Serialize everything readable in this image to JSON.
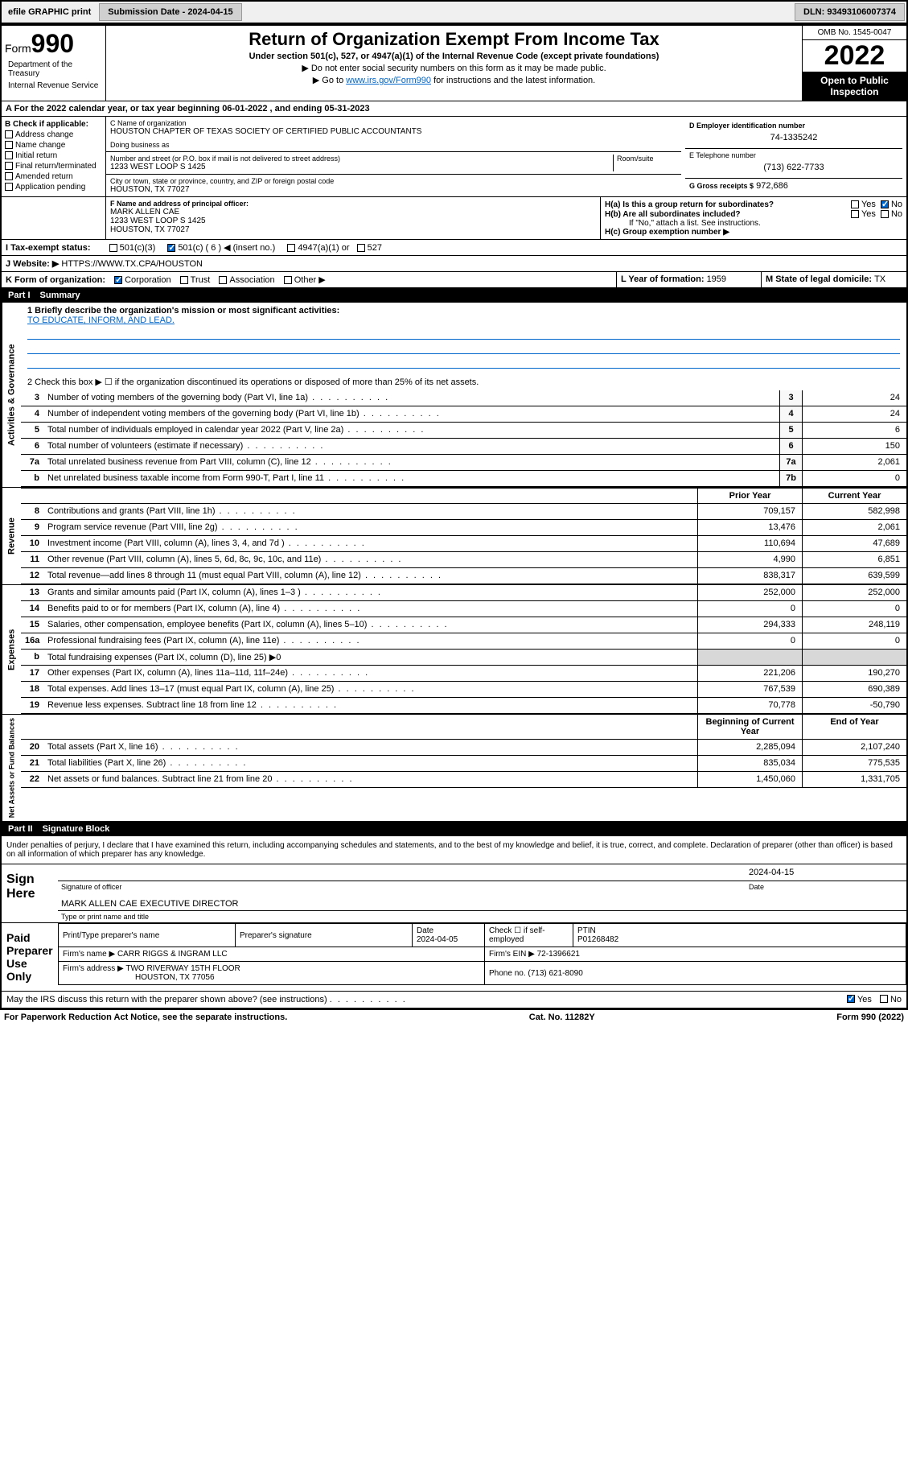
{
  "topbar": {
    "efile": "efile GRAPHIC print",
    "sub_label": "Submission Date - 2024-04-15",
    "dln_label": "DLN: 93493106007374"
  },
  "header": {
    "form_word": "Form",
    "form_num": "990",
    "title": "Return of Organization Exempt From Income Tax",
    "subtitle": "Under section 501(c), 527, or 4947(a)(1) of the Internal Revenue Code (except private foundations)",
    "note1": "▶ Do not enter social security numbers on this form as it may be made public.",
    "note2_pre": "▶ Go to ",
    "note2_link": "www.irs.gov/Form990",
    "note2_post": " for instructions and the latest information.",
    "omb": "OMB No. 1545-0047",
    "year": "2022",
    "open": "Open to Public Inspection",
    "dept": "Department of the Treasury",
    "irs": "Internal Revenue Service"
  },
  "section_a": {
    "line": "A For the 2022 calendar year, or tax year beginning 06-01-2022    , and ending 05-31-2023"
  },
  "block_b": {
    "title": "B Check if applicable:",
    "items": [
      "Address change",
      "Name change",
      "Initial return",
      "Final return/terminated",
      "Amended return",
      "Application pending"
    ]
  },
  "block_c": {
    "label": "C Name of organization",
    "name": "HOUSTON CHAPTER OF TEXAS SOCIETY OF CERTIFIED PUBLIC ACCOUNTANTS",
    "dba_label": "Doing business as",
    "addr_label": "Number and street (or P.O. box if mail is not delivered to street address)",
    "room_label": "Room/suite",
    "addr": "1233 WEST LOOP S 1425",
    "city_label": "City or town, state or province, country, and ZIP or foreign postal code",
    "city": "HOUSTON, TX  77027"
  },
  "block_d": {
    "label": "D Employer identification number",
    "value": "74-1335242"
  },
  "block_e": {
    "label": "E Telephone number",
    "value": "(713) 622-7733"
  },
  "block_g": {
    "label": "G Gross receipts $",
    "value": "972,686"
  },
  "block_f": {
    "label": "F Name and address of principal officer:",
    "name": "MARK ALLEN CAE",
    "addr1": "1233 WEST LOOP S 1425",
    "addr2": "HOUSTON, TX  77027"
  },
  "block_h": {
    "a_label": "H(a)  Is this a group return for subordinates?",
    "b_label": "H(b)  Are all subordinates included?",
    "note": "If \"No,\" attach a list. See instructions.",
    "c_label": "H(c)  Group exemption number ▶",
    "yes": "Yes",
    "no": "No"
  },
  "block_i": {
    "label": "I     Tax-exempt status:",
    "opt1": "501(c)(3)",
    "opt2": "501(c) ( 6 ) ◀ (insert no.)",
    "opt3": "4947(a)(1) or",
    "opt4": "527"
  },
  "block_j": {
    "label": "J     Website: ▶",
    "value": " HTTPS://WWW.TX.CPA/HOUSTON"
  },
  "block_k": {
    "label": "K Form of organization:",
    "opts": [
      "Corporation",
      "Trust",
      "Association",
      "Other ▶"
    ]
  },
  "block_l": {
    "label": "L Year of formation: ",
    "value": "1959"
  },
  "block_m": {
    "label": "M State of legal domicile: ",
    "value": "TX"
  },
  "part1": {
    "label": "Part I",
    "title": "Summary",
    "q1_label": "1  Briefly describe the organization's mission or most significant activities:",
    "q1_text": "TO EDUCATE, INFORM, AND LEAD.",
    "q2": "2    Check this box ▶ ☐  if the organization discontinued its operations or disposed of more than 25% of its net assets.",
    "vert_ag": "Activities & Governance",
    "vert_rev": "Revenue",
    "vert_exp": "Expenses",
    "vert_net": "Net Assets or Fund Balances",
    "prior": "Prior Year",
    "current": "Current Year",
    "begin": "Beginning of Current Year",
    "end": "End of Year",
    "lines_ag": [
      {
        "n": "3",
        "d": "Number of voting members of the governing body (Part VI, line 1a)",
        "box": "3",
        "v": "24"
      },
      {
        "n": "4",
        "d": "Number of independent voting members of the governing body (Part VI, line 1b)",
        "box": "4",
        "v": "24"
      },
      {
        "n": "5",
        "d": "Total number of individuals employed in calendar year 2022 (Part V, line 2a)",
        "box": "5",
        "v": "6"
      },
      {
        "n": "6",
        "d": "Total number of volunteers (estimate if necessary)",
        "box": "6",
        "v": "150"
      },
      {
        "n": "7a",
        "d": "Total unrelated business revenue from Part VIII, column (C), line 12",
        "box": "7a",
        "v": "2,061"
      },
      {
        "n": "b",
        "d": "Net unrelated business taxable income from Form 990-T, Part I, line 11",
        "box": "7b",
        "v": "0"
      }
    ],
    "lines_rev": [
      {
        "n": "8",
        "d": "Contributions and grants (Part VIII, line 1h)",
        "p": "709,157",
        "c": "582,998"
      },
      {
        "n": "9",
        "d": "Program service revenue (Part VIII, line 2g)",
        "p": "13,476",
        "c": "2,061"
      },
      {
        "n": "10",
        "d": "Investment income (Part VIII, column (A), lines 3, 4, and 7d )",
        "p": "110,694",
        "c": "47,689"
      },
      {
        "n": "11",
        "d": "Other revenue (Part VIII, column (A), lines 5, 6d, 8c, 9c, 10c, and 11e)",
        "p": "4,990",
        "c": "6,851"
      },
      {
        "n": "12",
        "d": "Total revenue—add lines 8 through 11 (must equal Part VIII, column (A), line 12)",
        "p": "838,317",
        "c": "639,599"
      }
    ],
    "lines_exp": [
      {
        "n": "13",
        "d": "Grants and similar amounts paid (Part IX, column (A), lines 1–3 )",
        "p": "252,000",
        "c": "252,000"
      },
      {
        "n": "14",
        "d": "Benefits paid to or for members (Part IX, column (A), line 4)",
        "p": "0",
        "c": "0"
      },
      {
        "n": "15",
        "d": "Salaries, other compensation, employee benefits (Part IX, column (A), lines 5–10)",
        "p": "294,333",
        "c": "248,119"
      },
      {
        "n": "16a",
        "d": "Professional fundraising fees (Part IX, column (A), line 11e)",
        "p": "0",
        "c": "0"
      },
      {
        "n": "b",
        "d": "Total fundraising expenses (Part IX, column (D), line 25) ▶0",
        "p": "",
        "c": "",
        "grey": true
      },
      {
        "n": "17",
        "d": "Other expenses (Part IX, column (A), lines 11a–11d, 11f–24e)",
        "p": "221,206",
        "c": "190,270"
      },
      {
        "n": "18",
        "d": "Total expenses. Add lines 13–17 (must equal Part IX, column (A), line 25)",
        "p": "767,539",
        "c": "690,389"
      },
      {
        "n": "19",
        "d": "Revenue less expenses. Subtract line 18 from line 12",
        "p": "70,778",
        "c": "-50,790"
      }
    ],
    "lines_net": [
      {
        "n": "20",
        "d": "Total assets (Part X, line 16)",
        "p": "2,285,094",
        "c": "2,107,240"
      },
      {
        "n": "21",
        "d": "Total liabilities (Part X, line 26)",
        "p": "835,034",
        "c": "775,535"
      },
      {
        "n": "22",
        "d": "Net assets or fund balances. Subtract line 21 from line 20",
        "p": "1,450,060",
        "c": "1,331,705"
      }
    ]
  },
  "part2": {
    "label": "Part II",
    "title": "Signature Block",
    "declaration": "Under penalties of perjury, I declare that I have examined this return, including accompanying schedules and statements, and to the best of my knowledge and belief, it is true, correct, and complete. Declaration of preparer (other than officer) is based on all information of which preparer has any knowledge.",
    "sign_here": "Sign Here",
    "sig_officer": "Signature of officer",
    "sig_date": "2024-04-15",
    "date_label": "Date",
    "officer_name": "MARK ALLEN CAE  EXECUTIVE DIRECTOR",
    "type_label": "Type or print name and title",
    "paid": "Paid Preparer Use Only",
    "prep_name_label": "Print/Type preparer's name",
    "prep_sig_label": "Preparer's signature",
    "prep_date_label": "Date",
    "prep_date": "2024-04-05",
    "check_label": "Check ☐ if self-employed",
    "ptin_label": "PTIN",
    "ptin": "P01268482",
    "firm_name_label": "Firm's name    ▶",
    "firm_name": "CARR RIGGS & INGRAM LLC",
    "firm_ein_label": "Firm's EIN ▶",
    "firm_ein": "72-1396621",
    "firm_addr_label": "Firm's address ▶",
    "firm_addr1": "TWO RIVERWAY 15TH FLOOR",
    "firm_addr2": "HOUSTON, TX  77056",
    "phone_label": "Phone no. ",
    "phone": "(713) 621-8090",
    "discuss": "May the IRS discuss this return with the preparer shown above? (see instructions)",
    "yes": "Yes",
    "no": "No"
  },
  "footer": {
    "left": "For Paperwork Reduction Act Notice, see the separate instructions.",
    "mid": "Cat. No. 11282Y",
    "right": "Form 990 (2022)"
  }
}
